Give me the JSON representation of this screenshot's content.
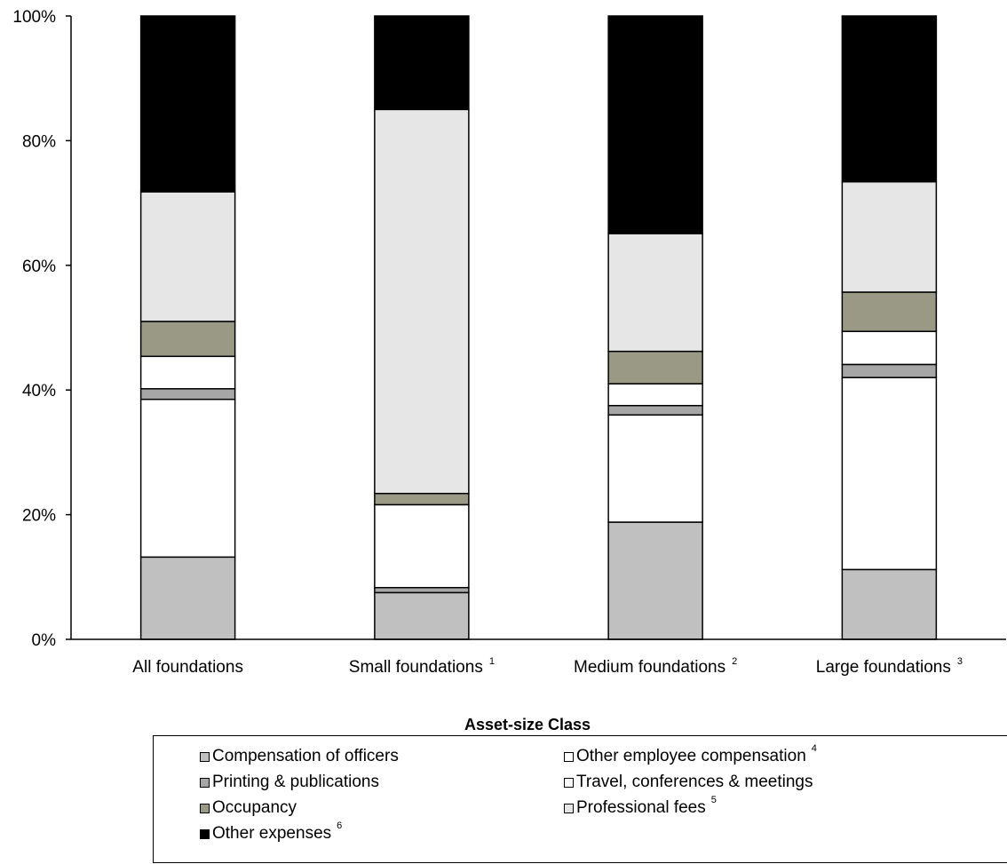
{
  "chart_data": {
    "type": "bar",
    "stacked": true,
    "xlabel": "Asset-size Class",
    "ylabel": "",
    "ylim": [
      0,
      100
    ],
    "y_ticks": [
      "0%",
      "20%",
      "40%",
      "60%",
      "80%",
      "100%"
    ],
    "categories": [
      {
        "label": "All foundations",
        "note": ""
      },
      {
        "label": "Small foundations",
        "note": "1"
      },
      {
        "label": "Medium foundations",
        "note": "2"
      },
      {
        "label": "Large foundations",
        "note": "3"
      }
    ],
    "series": [
      {
        "name": "Compensation of officers",
        "note": "",
        "color": "#c0c0c0",
        "values": [
          13.2,
          7.5,
          18.8,
          11.2
        ]
      },
      {
        "name": "Other employee compensation",
        "note": "4",
        "color": "#ffffff",
        "values": [
          25.3,
          0.0,
          17.2,
          30.8
        ]
      },
      {
        "name": "Printing & publications",
        "note": "",
        "color": "#a6a6a6",
        "values": [
          1.7,
          0.8,
          1.5,
          2.1
        ]
      },
      {
        "name": "Travel, conferences & meetings",
        "note": "",
        "color": "#ffffff",
        "values": [
          5.2,
          13.3,
          3.5,
          5.3
        ]
      },
      {
        "name": "Occupancy",
        "note": "",
        "color": "#999985",
        "values": [
          5.6,
          1.8,
          5.2,
          6.3
        ]
      },
      {
        "name": "Professional fees",
        "note": "5",
        "color": "#e6e6e6",
        "values": [
          20.8,
          61.6,
          18.9,
          17.7
        ]
      },
      {
        "name": "Other expenses",
        "note": "6",
        "color": "#000000",
        "values": [
          28.2,
          15.0,
          34.9,
          26.6
        ]
      }
    ],
    "legend": {
      "placement": "bottom"
    },
    "grid": false
  }
}
